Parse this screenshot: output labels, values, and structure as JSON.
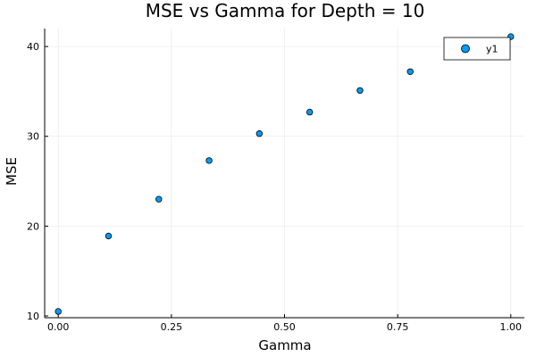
{
  "chart_data": {
    "type": "scatter",
    "title": "MSE vs Gamma for Depth = 10",
    "xlabel": "Gamma",
    "ylabel": "MSE",
    "xlim": [
      -0.03,
      1.03
    ],
    "ylim": [
      9.8,
      42.0
    ],
    "xticks": [
      0.0,
      0.25,
      0.5,
      0.75,
      1.0
    ],
    "xtick_labels": [
      "0.00",
      "0.25",
      "0.50",
      "0.75",
      "1.00"
    ],
    "yticks": [
      10,
      20,
      30,
      40
    ],
    "ytick_labels": [
      "10",
      "20",
      "30",
      "40"
    ],
    "grid": true,
    "legend_position": "top-right",
    "series": [
      {
        "name": "y1",
        "color": "#009af9",
        "x": [
          0.0,
          0.1111,
          0.2222,
          0.3333,
          0.4444,
          0.5556,
          0.6667,
          0.7778,
          1.0
        ],
        "y": [
          10.5,
          18.9,
          23.0,
          27.3,
          30.3,
          32.7,
          35.1,
          37.2,
          41.1
        ]
      }
    ]
  }
}
